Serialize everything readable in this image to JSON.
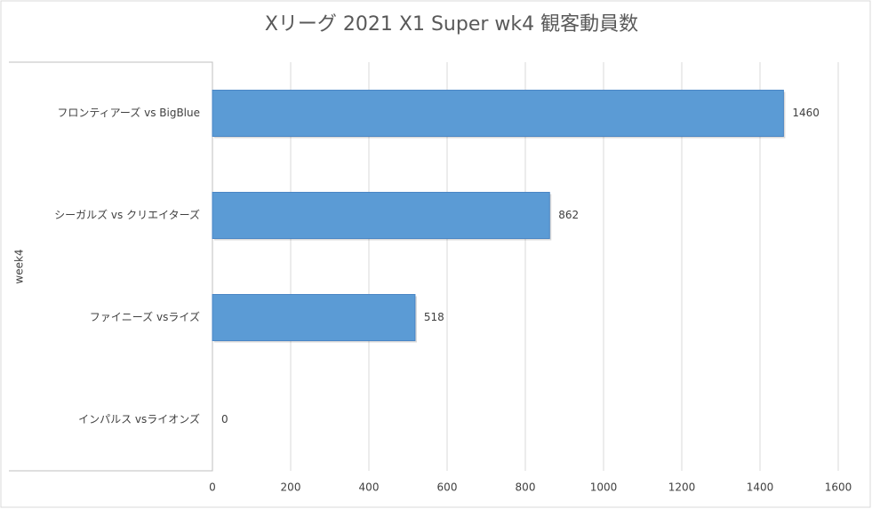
{
  "chart_data": {
    "type": "bar",
    "orientation": "horizontal",
    "title": "Xリーグ 2021 X1 Super wk4 観客動員数",
    "group_label": "week4",
    "categories": [
      "フロンティアーズ vs BigBlue",
      "シーガルズ vs クリエイターズ",
      "ファイニーズ vsライズ",
      "インパルス vsライオンズ"
    ],
    "values": [
      1460,
      862,
      518,
      0
    ],
    "color": "#5b9bd5",
    "xlim": [
      0,
      1600
    ],
    "xticks": [
      0,
      200,
      400,
      600,
      800,
      1000,
      1200,
      1400,
      1600
    ],
    "grid": true
  }
}
